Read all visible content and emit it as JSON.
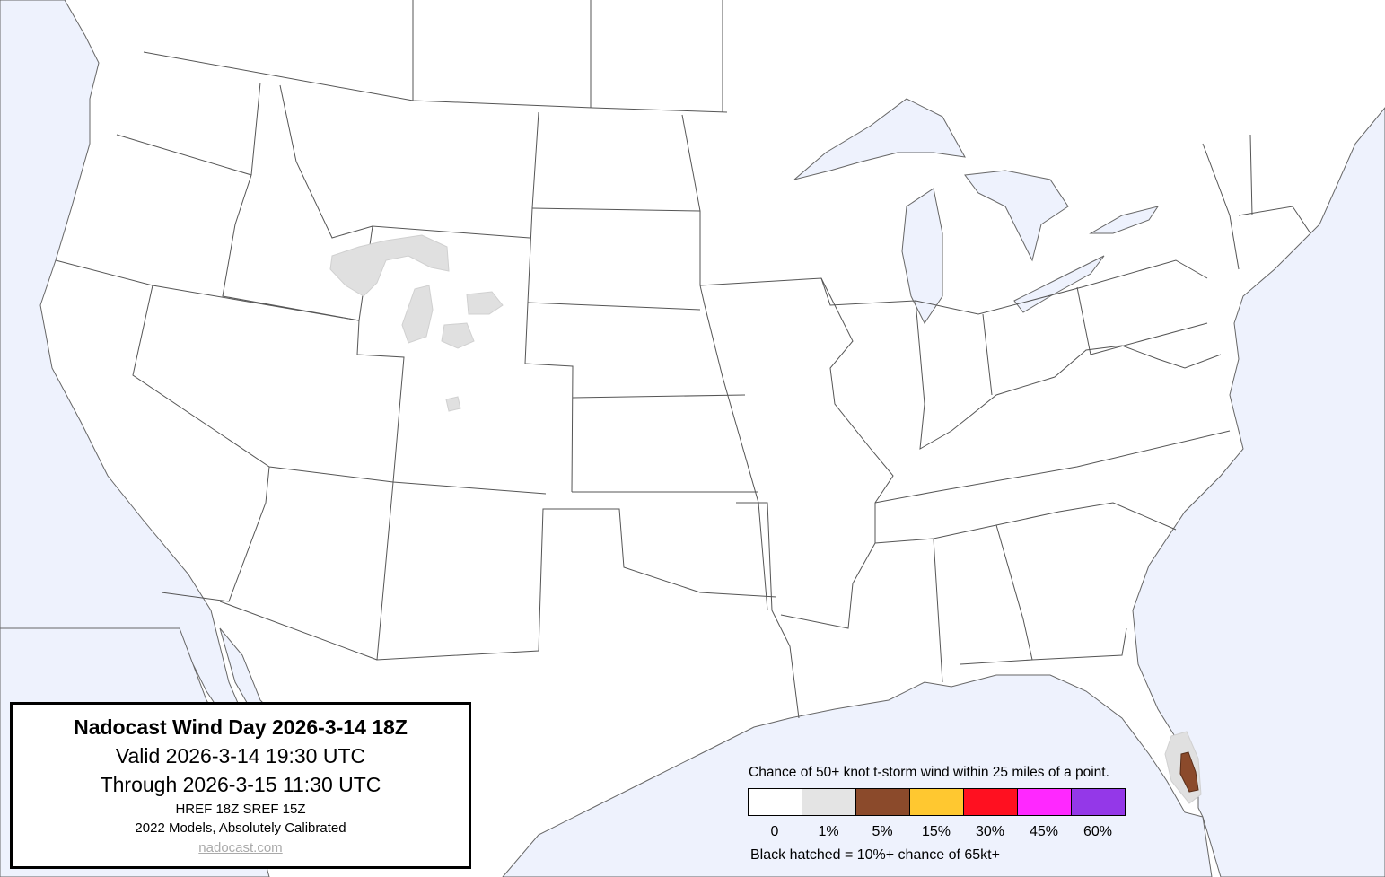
{
  "title_box": {
    "title": "Nadocast Wind Day 2026-3-14 18Z",
    "valid": "Valid 2026-3-14 19:30 UTC",
    "through": "Through 2026-3-15 11:30 UTC",
    "models": "HREF 18Z SREF 15Z",
    "calibration": "2022 Models, Absolutely Calibrated",
    "link": "nadocast.com"
  },
  "legend": {
    "caption": "Chance of 50+ knot t-storm wind within 25 miles of a point.",
    "bins": [
      {
        "label": "0",
        "color": "#ffffff"
      },
      {
        "label": "1%",
        "color": "#e4e4e4"
      },
      {
        "label": "5%",
        "color": "#8b4a2b"
      },
      {
        "label": "15%",
        "color": "#ffc830"
      },
      {
        "label": "30%",
        "color": "#ff1020"
      },
      {
        "label": "45%",
        "color": "#ff28ff"
      },
      {
        "label": "60%",
        "color": "#9438e8"
      }
    ],
    "hatch_note": "Black hatched = 10%+ chance of 65kt+"
  },
  "colors": {
    "water": "#eef2fd",
    "land": "#ffffff",
    "borders": "#555555"
  }
}
